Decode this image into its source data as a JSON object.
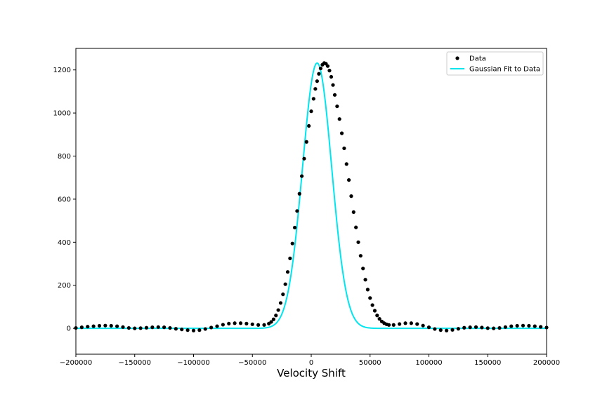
{
  "chart_data": {
    "type": "scatter",
    "title": "",
    "xlabel": "Velocity Shift",
    "ylabel": "",
    "xlim": [
      -200000,
      200000
    ],
    "ylim": [
      -120,
      1300
    ],
    "grid": false,
    "legend_position": "top-right",
    "x_ticks": [
      -200000,
      -150000,
      -100000,
      -50000,
      0,
      50000,
      100000,
      150000,
      200000
    ],
    "x_tick_labels": [
      "−200000",
      "−150000",
      "−100000",
      "−50000",
      "0",
      "50000",
      "100000",
      "150000",
      "200000"
    ],
    "y_ticks": [
      0,
      200,
      400,
      600,
      800,
      1000,
      1200
    ],
    "y_tick_labels": [
      "0",
      "200",
      "400",
      "600",
      "800",
      "1000",
      "1200"
    ],
    "legend": {
      "data_label": "Data",
      "fit_label": "Gaussian Fit to Data"
    },
    "colors": {
      "data": "#000000",
      "fit": "#00e5ee"
    },
    "series": [
      {
        "name": "Data",
        "kind": "scatter",
        "points": [
          [
            -200000,
            2
          ],
          [
            -195000,
            5
          ],
          [
            -190000,
            8
          ],
          [
            -185000,
            10
          ],
          [
            -180000,
            12
          ],
          [
            -175000,
            13
          ],
          [
            -170000,
            12
          ],
          [
            -165000,
            10
          ],
          [
            -160000,
            6
          ],
          [
            -155000,
            2
          ],
          [
            -150000,
            0
          ],
          [
            -145000,
            1
          ],
          [
            -140000,
            3
          ],
          [
            -135000,
            5
          ],
          [
            -130000,
            6
          ],
          [
            -125000,
            5
          ],
          [
            -120000,
            2
          ],
          [
            -115000,
            -2
          ],
          [
            -110000,
            -5
          ],
          [
            -105000,
            -8
          ],
          [
            -100000,
            -10
          ],
          [
            -95000,
            -8
          ],
          [
            -90000,
            -3
          ],
          [
            -85000,
            4
          ],
          [
            -80000,
            10
          ],
          [
            -75000,
            17
          ],
          [
            -70000,
            22
          ],
          [
            -65000,
            24
          ],
          [
            -60000,
            24
          ],
          [
            -55000,
            22
          ],
          [
            -50000,
            19
          ],
          [
            -45000,
            16
          ],
          [
            -40000,
            16
          ],
          [
            -36000,
            22
          ],
          [
            -34000,
            30
          ],
          [
            -32000,
            42
          ],
          [
            -30000,
            60
          ],
          [
            -28000,
            85
          ],
          [
            -26000,
            118
          ],
          [
            -24000,
            158
          ],
          [
            -22000,
            205
          ],
          [
            -20000,
            262
          ],
          [
            -18000,
            325
          ],
          [
            -16000,
            394
          ],
          [
            -14000,
            468
          ],
          [
            -12000,
            545
          ],
          [
            -10000,
            625
          ],
          [
            -8000,
            707
          ],
          [
            -6000,
            788
          ],
          [
            -4000,
            866
          ],
          [
            -2000,
            940
          ],
          [
            0,
            1008
          ],
          [
            2000,
            1066
          ],
          [
            3500,
            1112
          ],
          [
            5000,
            1148
          ],
          [
            6500,
            1182
          ],
          [
            8000,
            1207
          ],
          [
            9500,
            1224
          ],
          [
            11000,
            1232
          ],
          [
            12500,
            1229
          ],
          [
            14000,
            1218
          ],
          [
            15500,
            1197
          ],
          [
            17000,
            1168
          ],
          [
            18500,
            1130
          ],
          [
            20000,
            1084
          ],
          [
            22000,
            1031
          ],
          [
            24000,
            972
          ],
          [
            26000,
            906
          ],
          [
            28000,
            836
          ],
          [
            30000,
            763
          ],
          [
            32000,
            689
          ],
          [
            34000,
            614
          ],
          [
            36000,
            540
          ],
          [
            38000,
            469
          ],
          [
            40000,
            400
          ],
          [
            42000,
            337
          ],
          [
            44000,
            278
          ],
          [
            46000,
            226
          ],
          [
            48000,
            180
          ],
          [
            50000,
            141
          ],
          [
            52000,
            108
          ],
          [
            54000,
            82
          ],
          [
            56000,
            60
          ],
          [
            58000,
            44
          ],
          [
            60000,
            32
          ],
          [
            62000,
            24
          ],
          [
            64000,
            19
          ],
          [
            66000,
            16
          ],
          [
            70000,
            16
          ],
          [
            75000,
            20
          ],
          [
            80000,
            24
          ],
          [
            85000,
            24
          ],
          [
            90000,
            20
          ],
          [
            95000,
            13
          ],
          [
            100000,
            5
          ],
          [
            105000,
            -3
          ],
          [
            110000,
            -8
          ],
          [
            115000,
            -10
          ],
          [
            120000,
            -7
          ],
          [
            125000,
            -2
          ],
          [
            130000,
            3
          ],
          [
            135000,
            5
          ],
          [
            140000,
            6
          ],
          [
            145000,
            4
          ],
          [
            150000,
            1
          ],
          [
            155000,
            0
          ],
          [
            160000,
            2
          ],
          [
            165000,
            6
          ],
          [
            170000,
            10
          ],
          [
            175000,
            12
          ],
          [
            180000,
            13
          ],
          [
            185000,
            12
          ],
          [
            190000,
            10
          ],
          [
            195000,
            7
          ],
          [
            200000,
            4
          ]
        ]
      },
      {
        "name": "Gaussian Fit to Data",
        "kind": "line",
        "amplitude": 1232,
        "center": 5000,
        "sigma": 12400
      }
    ]
  }
}
